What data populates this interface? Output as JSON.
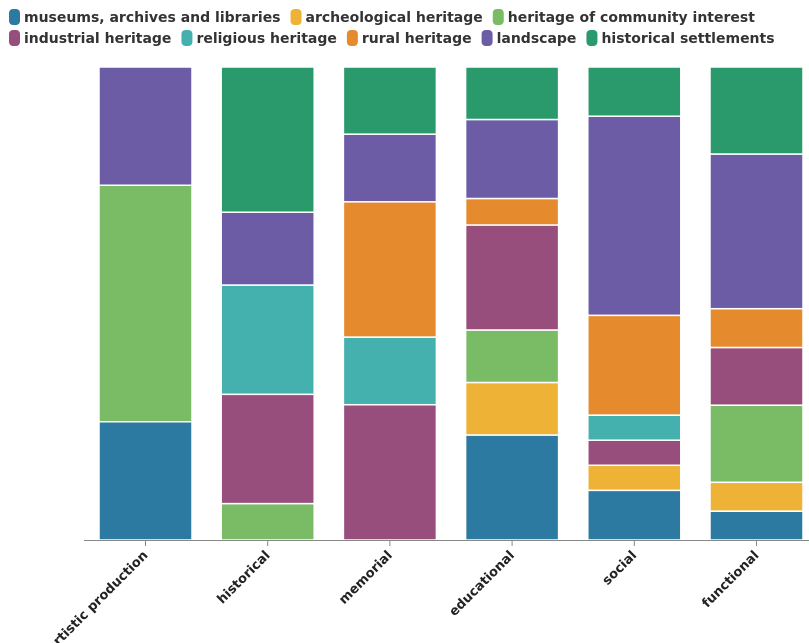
{
  "chart_data": {
    "type": "bar",
    "stacked": true,
    "normalized": true,
    "title": "",
    "xlabel": "",
    "ylabel": "",
    "ylim": [
      0,
      100
    ],
    "legend_position": "top",
    "grid": false,
    "categories": [
      "artistic production",
      "historical",
      "memorial",
      "educational",
      "social",
      "functional"
    ],
    "series": [
      {
        "name": "museums, archives and libraries",
        "color": "#2c7aa1",
        "values": [
          25,
          0,
          0,
          22.2,
          10.5,
          6.1
        ]
      },
      {
        "name": "archeological heritage",
        "color": "#edb236",
        "values": [
          0,
          0,
          0,
          11.1,
          5.3,
          6.1
        ]
      },
      {
        "name": "heritage of community interest",
        "color": "#7abb65",
        "values": [
          50,
          7.7,
          0,
          11.1,
          0,
          16.3
        ]
      },
      {
        "name": "industrial heritage",
        "color": "#974e7d",
        "values": [
          0,
          23.1,
          28.6,
          22.2,
          5.3,
          12.2
        ]
      },
      {
        "name": "religious heritage",
        "color": "#45b1ae",
        "values": [
          0,
          23.1,
          14.3,
          0,
          5.3,
          0
        ]
      },
      {
        "name": "rural heritage",
        "color": "#e68a2e",
        "values": [
          0,
          0,
          28.6,
          5.6,
          21.1,
          8.2
        ]
      },
      {
        "name": "landscape",
        "color": "#6b5ca5",
        "values": [
          25,
          15.4,
          14.3,
          16.7,
          42.1,
          32.7
        ]
      },
      {
        "name": "historical settlements",
        "color": "#2a9a6c",
        "values": [
          0,
          30.7,
          14.2,
          11.1,
          10.4,
          18.4
        ]
      }
    ]
  }
}
